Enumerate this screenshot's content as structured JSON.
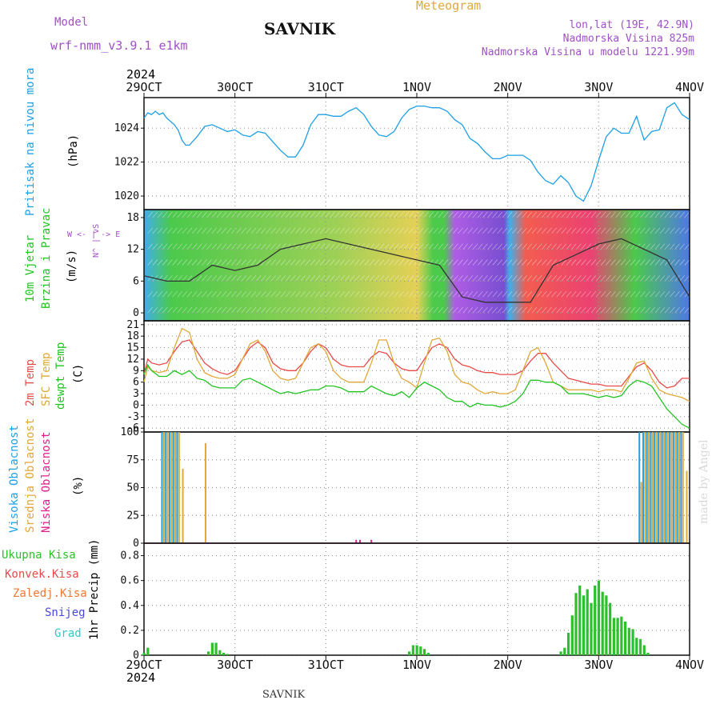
{
  "header": {
    "model_label": "Model",
    "model_name": "wrf-nmm_v3.9.1 e1km",
    "station": "SAVNIK",
    "meteogram": "Meteogram",
    "lonlat": "lon,lat (19E, 42.9N)",
    "altitude": "Nadmorska Visina 825m",
    "model_altitude": "Nadmorska Visina u modelu 1221.99m"
  },
  "colors": {
    "pressure": "#1ea0e6",
    "temp2m": "#e84a4a",
    "sfc": "#e0a838",
    "dewpt": "#22c422",
    "high_cloud": "#1ea0e6",
    "mid_cloud": "#e0a838",
    "low_cloud": "#e01e8c",
    "precip": "#2cc02c",
    "grid": "#999999",
    "model": "#a050c8"
  },
  "axis": {
    "year": "2024",
    "dates": [
      "29OCT",
      "30OCT",
      "31OCT",
      "1NOV",
      "2NOV",
      "3NOV",
      "4NOV"
    ]
  },
  "panels": {
    "pressure": {
      "label": "Pritisak na nivou mora",
      "unit": "(hPa)"
    },
    "wind": {
      "label1": "10m Vjetar",
      "label2": "Brzina i Pravac",
      "unit": "(m/s)",
      "compass": "W <- | -> E",
      "compass_ns": "N^ | vS"
    },
    "temp": {
      "label1": "2m Temp",
      "label2": "SFC Temp",
      "label3": "dewpt Temp",
      "unit": "(C)"
    },
    "cloud": {
      "label1": "Visoka Oblacnost",
      "label2": "Srednja Oblacnost",
      "label3": "Niska Oblacnost",
      "unit": "(%)"
    },
    "precip": {
      "unit": "1hr Precip (mm)",
      "legend": [
        "Ukupna Kisa",
        "Konvek.Kisa",
        "Zaledj.Kisa",
        "Snijeg",
        "Grad"
      ]
    }
  },
  "footer": {
    "station": "SAVNIK",
    "credit": "made by Angel"
  },
  "chart_data": [
    {
      "type": "line",
      "title": "Pritisak na nivou mora",
      "ylabel": "(hPa)",
      "x_unit": "hours from 29OCT 00UTC",
      "ylim": [
        1019.2,
        1025.8
      ],
      "yticks": [
        1020,
        1022,
        1024
      ],
      "xlim": [
        0,
        144
      ],
      "series": [
        {
          "name": "Pritisak na nivou mora",
          "x": [
            0,
            1,
            2,
            3,
            4,
            5,
            6,
            7,
            8,
            9,
            10,
            11,
            12,
            14,
            16,
            18,
            20,
            22,
            24,
            26,
            28,
            30,
            32,
            34,
            36,
            38,
            40,
            42,
            44,
            46,
            48,
            50,
            52,
            54,
            56,
            58,
            60,
            62,
            64,
            66,
            68,
            70,
            72,
            74,
            76,
            78,
            80,
            82,
            84,
            86,
            88,
            90,
            92,
            94,
            96,
            98,
            100,
            102,
            104,
            106,
            108,
            110,
            112,
            114,
            116,
            118,
            120,
            122,
            124,
            126,
            128,
            130,
            132,
            134,
            136,
            138,
            140,
            142,
            144
          ],
          "values": [
            1024.6,
            1024.9,
            1024.8,
            1025.0,
            1024.8,
            1024.9,
            1024.6,
            1024.4,
            1024.2,
            1023.9,
            1023.3,
            1023.0,
            1023.0,
            1023.5,
            1024.1,
            1024.2,
            1024.0,
            1023.8,
            1023.9,
            1023.6,
            1023.5,
            1023.8,
            1023.7,
            1023.2,
            1022.7,
            1022.3,
            1022.3,
            1023.0,
            1024.2,
            1024.8,
            1024.8,
            1024.7,
            1024.7,
            1025.0,
            1025.2,
            1024.8,
            1024.1,
            1023.6,
            1023.5,
            1023.8,
            1024.6,
            1025.1,
            1025.3,
            1025.3,
            1025.2,
            1025.2,
            1025.0,
            1024.5,
            1024.2,
            1023.4,
            1023.1,
            1022.6,
            1022.2,
            1022.2,
            1022.4,
            1022.4,
            1022.4,
            1022.1,
            1021.4,
            1020.9,
            1020.7,
            1021.2,
            1020.8,
            1020.0,
            1019.7,
            1020.6,
            1022.1,
            1023.5,
            1024.0,
            1023.7,
            1023.7,
            1024.7,
            1023.3,
            1023.8,
            1023.9,
            1025.2,
            1025.5,
            1024.8,
            1024.5
          ]
        }
      ]
    },
    {
      "type": "line",
      "title": "10m Vjetar Brzina i Pravac",
      "ylabel": "(m/s)",
      "x_unit": "hours from 29OCT 00UTC",
      "ylim": [
        -1.5,
        19.5
      ],
      "yticks": [
        0,
        6,
        12,
        18
      ],
      "xlim": [
        0,
        144
      ],
      "series": [
        {
          "name": "Brzina",
          "x": [
            0,
            6,
            12,
            18,
            24,
            30,
            36,
            42,
            48,
            54,
            60,
            66,
            72,
            78,
            84,
            90,
            96,
            102,
            108,
            114,
            120,
            126,
            132,
            138,
            144
          ],
          "values": [
            7,
            6,
            6,
            9,
            8,
            9,
            12,
            13,
            14,
            13,
            12,
            11,
            10,
            9,
            3,
            2,
            2,
            2,
            9,
            11,
            13,
            14,
            12,
            10,
            3
          ]
        }
      ]
    },
    {
      "type": "line",
      "title": "2m Temp / SFC Temp / dewpt Temp",
      "ylabel": "(C)",
      "x_unit": "hours from 29OCT 00UTC",
      "ylim": [
        -7,
        22
      ],
      "yticks": [
        -6,
        -3,
        0,
        3,
        6,
        9,
        12,
        15,
        18,
        21
      ],
      "xlim": [
        0,
        144
      ],
      "series": [
        {
          "name": "2m Temp",
          "x": [
            0,
            1,
            2,
            4,
            6,
            8,
            10,
            12,
            14,
            16,
            18,
            20,
            22,
            24,
            26,
            28,
            30,
            32,
            34,
            36,
            38,
            40,
            42,
            44,
            46,
            48,
            50,
            52,
            54,
            56,
            58,
            60,
            62,
            64,
            66,
            68,
            70,
            72,
            74,
            76,
            78,
            80,
            82,
            84,
            86,
            88,
            90,
            92,
            94,
            96,
            98,
            100,
            102,
            104,
            106,
            108,
            110,
            112,
            114,
            116,
            118,
            120,
            122,
            124,
            126,
            128,
            130,
            132,
            134,
            136,
            138,
            140,
            142,
            144
          ],
          "values": [
            8,
            12,
            11,
            10.5,
            11,
            14,
            16.5,
            17,
            14,
            11,
            9.5,
            8.5,
            8,
            9,
            12,
            15,
            16.5,
            15,
            11,
            9.5,
            9,
            9,
            11,
            14,
            16,
            15,
            12,
            10.5,
            10,
            10,
            10,
            12.5,
            14,
            13.5,
            11,
            9.5,
            9,
            9,
            12,
            15,
            16,
            15,
            12,
            10.5,
            10,
            9,
            8.5,
            8.5,
            8,
            8,
            8,
            9,
            11.5,
            13.5,
            13.5,
            11,
            9,
            7,
            6.5,
            6,
            5.5,
            5.5,
            5,
            5,
            5,
            7.5,
            10,
            11,
            9,
            6,
            4.5,
            5,
            7,
            7
          ]
        },
        {
          "name": "SFC Temp",
          "x": [
            0,
            1,
            2,
            4,
            6,
            8,
            10,
            12,
            14,
            16,
            18,
            20,
            22,
            24,
            26,
            28,
            30,
            32,
            34,
            36,
            38,
            40,
            42,
            44,
            46,
            48,
            50,
            52,
            54,
            56,
            58,
            60,
            62,
            64,
            66,
            68,
            70,
            72,
            74,
            76,
            78,
            80,
            82,
            84,
            86,
            88,
            90,
            92,
            94,
            96,
            98,
            100,
            102,
            104,
            106,
            108,
            110,
            112,
            114,
            116,
            118,
            120,
            122,
            124,
            126,
            128,
            130,
            132,
            134,
            136,
            138,
            140,
            142,
            144
          ],
          "values": [
            6,
            10,
            9,
            8.5,
            9,
            15,
            20,
            19,
            12,
            8.5,
            7.5,
            7,
            7,
            8,
            12,
            16,
            17,
            14,
            9,
            7,
            6.5,
            7,
            11,
            15,
            16,
            14,
            9,
            7,
            6,
            6,
            6,
            11,
            17,
            17,
            11,
            7,
            6,
            4.5,
            11,
            17,
            17.5,
            14,
            8,
            6,
            5.5,
            4,
            3,
            3.5,
            3,
            3,
            4,
            9,
            14,
            15,
            11,
            6,
            5,
            4,
            4,
            4,
            4,
            3.5,
            4,
            4,
            3.5,
            7,
            11,
            11.5,
            7,
            4,
            3,
            2.5,
            2,
            1
          ]
        },
        {
          "name": "dewpt Temp",
          "x": [
            0,
            1,
            2,
            4,
            6,
            8,
            10,
            12,
            14,
            16,
            18,
            20,
            22,
            24,
            26,
            28,
            30,
            32,
            34,
            36,
            38,
            40,
            42,
            44,
            46,
            48,
            50,
            52,
            54,
            56,
            58,
            60,
            62,
            64,
            66,
            68,
            70,
            72,
            74,
            76,
            78,
            80,
            82,
            84,
            86,
            88,
            90,
            92,
            94,
            96,
            98,
            100,
            102,
            104,
            106,
            108,
            110,
            112,
            114,
            116,
            118,
            120,
            122,
            124,
            126,
            128,
            130,
            132,
            134,
            136,
            138,
            140,
            142,
            144
          ],
          "values": [
            8,
            10.5,
            9,
            7.5,
            7.5,
            9,
            8,
            9,
            7,
            6.5,
            5,
            4.5,
            4.5,
            4.5,
            6.5,
            7,
            6,
            5,
            4,
            3,
            3.5,
            3,
            3.5,
            4,
            4,
            5,
            5,
            4.5,
            3.5,
            3.5,
            3.5,
            5,
            4,
            3,
            2.5,
            3.5,
            2,
            4.5,
            6,
            5,
            4,
            2,
            1,
            1,
            -0.5,
            0.5,
            0,
            0,
            -0.5,
            0,
            1,
            3,
            6.5,
            6.5,
            6,
            6,
            5,
            3,
            3,
            3,
            2.5,
            2,
            2.5,
            2,
            2.5,
            5,
            6.5,
            6,
            5,
            2,
            -1,
            -3,
            -5,
            -6
          ]
        }
      ]
    },
    {
      "type": "bar",
      "title": "Visoka / Srednja / Niska Oblacnost",
      "ylabel": "(%)",
      "x_unit": "hours from 29OCT 00UTC",
      "ylim": [
        0,
        100
      ],
      "yticks": [
        0,
        25,
        50,
        75,
        100
      ],
      "xlim": [
        0,
        144
      ],
      "series": [
        {
          "name": "Visoka Oblacnost",
          "x": [
            5,
            6,
            7,
            8,
            9,
            131,
            132,
            133,
            134,
            135,
            136,
            137,
            138,
            139,
            140,
            141,
            142
          ],
          "values": [
            100,
            100,
            100,
            100,
            100,
            100,
            100,
            100,
            100,
            100,
            100,
            100,
            100,
            100,
            100,
            100,
            100
          ]
        },
        {
          "name": "Srednja Oblacnost",
          "x": [
            5,
            6,
            7,
            8,
            9,
            10,
            16,
            131,
            132,
            133,
            134,
            135,
            136,
            137,
            138,
            139,
            140,
            141,
            142,
            143
          ],
          "values": [
            100,
            100,
            100,
            100,
            100,
            67,
            90,
            55,
            100,
            100,
            100,
            100,
            100,
            100,
            100,
            100,
            100,
            100,
            100,
            65
          ]
        },
        {
          "name": "Niska Oblacnost",
          "x": [
            56,
            57,
            60
          ],
          "values": [
            3,
            3,
            3
          ]
        }
      ]
    },
    {
      "type": "bar",
      "title": "1hr Precip",
      "ylabel": "1hr Precip (mm)",
      "x_unit": "hours from 29OCT 00UTC",
      "ylim": [
        0,
        0.9
      ],
      "yticks": [
        0,
        0.2,
        0.4,
        0.6,
        0.8
      ],
      "xlim": [
        0,
        144
      ],
      "series": [
        {
          "name": "Ukupna Kisa",
          "x": [
            0,
            1,
            17,
            18,
            19,
            20,
            21,
            22,
            70,
            71,
            72,
            73,
            74,
            75,
            110,
            111,
            112,
            113,
            114,
            115,
            116,
            117,
            118,
            119,
            120,
            121,
            122,
            123,
            124,
            125,
            126,
            127,
            128,
            129,
            130,
            131,
            132,
            133
          ],
          "values": [
            0.02,
            0.06,
            0.03,
            0.1,
            0.1,
            0.04,
            0.02,
            0.01,
            0.03,
            0.08,
            0.08,
            0.07,
            0.05,
            0.02,
            0.03,
            0.06,
            0.18,
            0.32,
            0.5,
            0.56,
            0.48,
            0.53,
            0.42,
            0.56,
            0.6,
            0.51,
            0.48,
            0.42,
            0.3,
            0.3,
            0.31,
            0.27,
            0.22,
            0.21,
            0.14,
            0.13,
            0.08,
            0.02
          ]
        }
      ]
    }
  ]
}
